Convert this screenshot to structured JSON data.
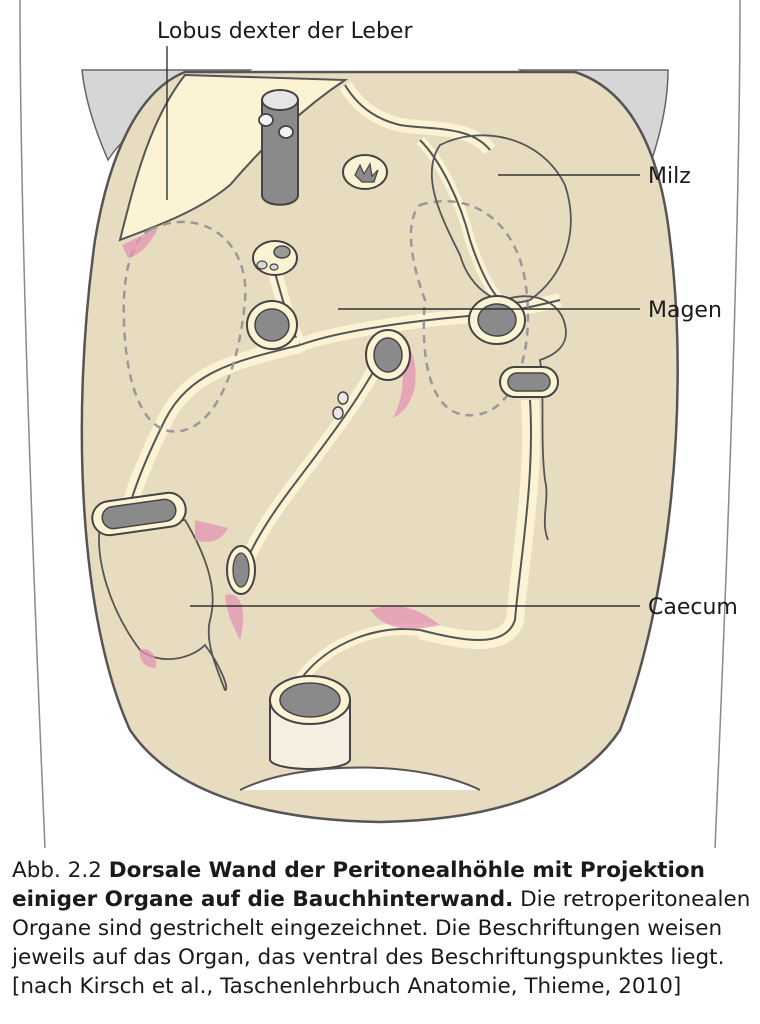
{
  "labels": {
    "liver": "Lobus dexter der Leber",
    "spleen": "Milz",
    "stomach": "Magen",
    "caecum": "Caecum"
  },
  "caption": {
    "number": "Abb. 2.2",
    "title": "Dorsale Wand der Peritonealhöhle mit Projektion einiger Organe auf die Bauchhinterwand.",
    "text": "Die retroperitonealen Organe sind gestrichelt eingezeichnet. Die Beschriftungen weisen jeweils auf das Organ, das ventral des Beschriftungspunktes liegt. [nach Kirsch et al., Taschenlehrbuch Anatomie, Thieme, 2010]"
  },
  "colors": {
    "wall": "#e8dcc0",
    "mesentery": "#fbf3d4",
    "outline": "#555555",
    "vessel_gray": "#8a8a8a",
    "pink": "#d9467c"
  }
}
